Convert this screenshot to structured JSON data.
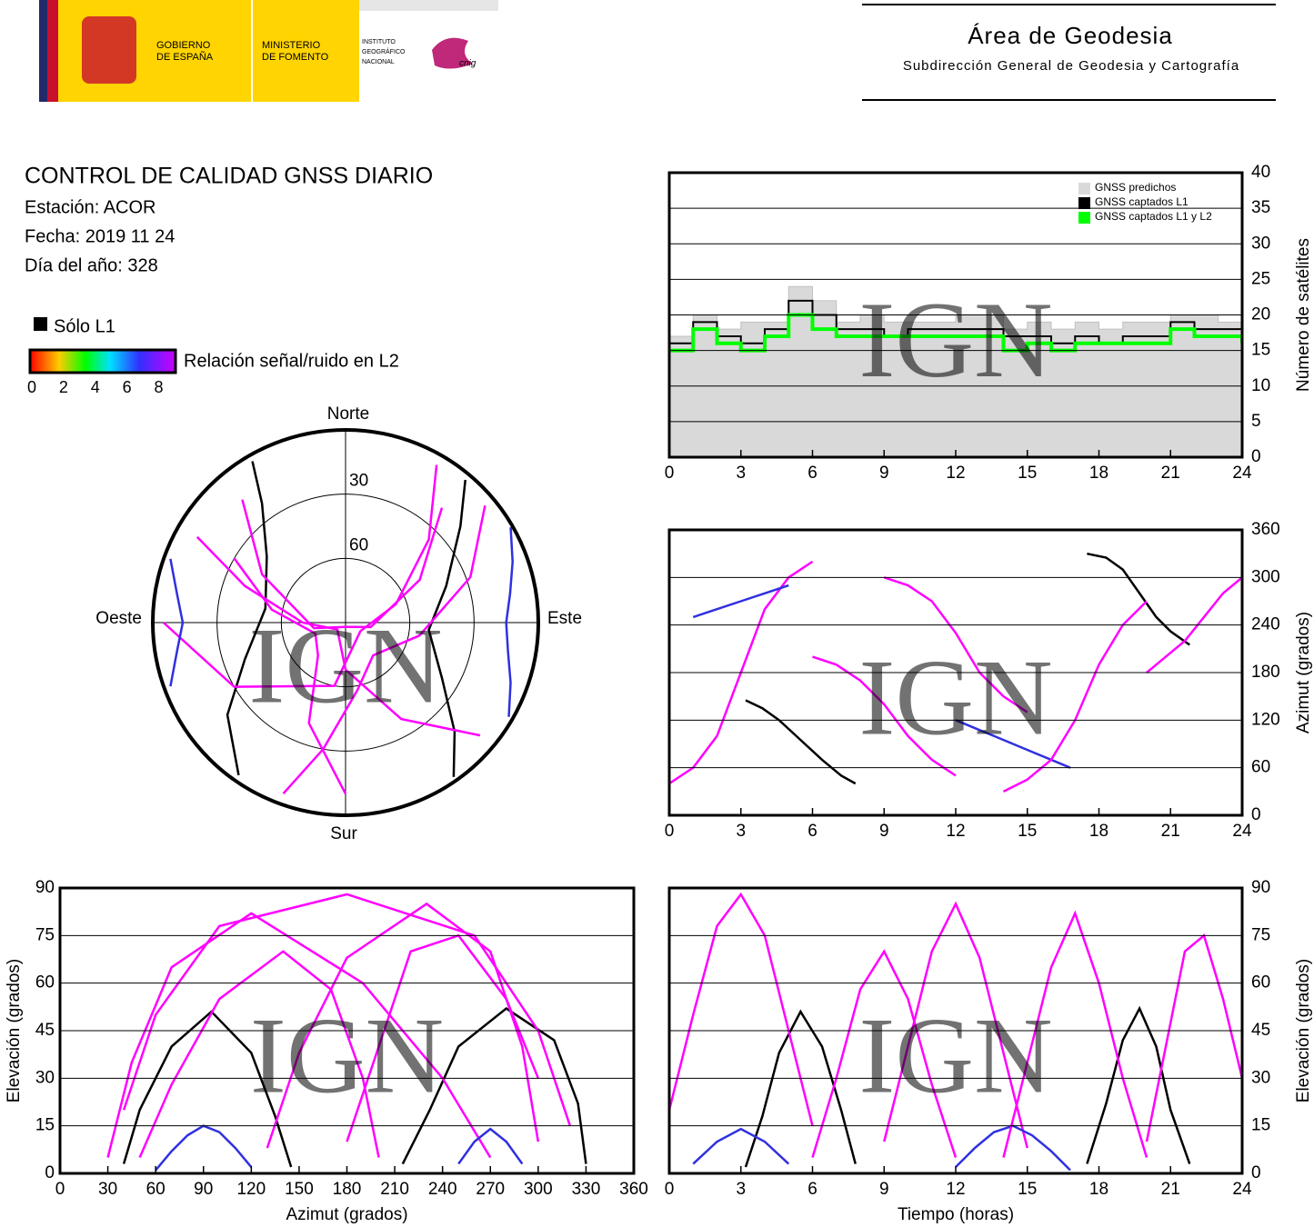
{
  "header": {
    "gobierno": [
      "GOBIERNO",
      "DE ESPAÑA"
    ],
    "ministerio": [
      "MINISTERIO",
      "DE FOMENTO"
    ],
    "instituto": [
      "INSTITUTO",
      "GEOGRÁFICO",
      "NACIONAL"
    ],
    "cnig": "cnig",
    "area": "Área de Geodesia",
    "subdireccion": "Subdirección General de Geodesia y Cartografía"
  },
  "report": {
    "title": "CONTROL DE CALIDAD GNSS DIARIO",
    "station": "Estación: ACOR",
    "date": "Fecha: 2019 11 24",
    "doy": "Día del año: 328",
    "l1_only": "Sólo L1",
    "l1_only_color": "#000000",
    "snr_label": "Relación señal/ruido en L2",
    "snr_lim": [
      0,
      9
    ],
    "snr_ticks": [
      0,
      2,
      4,
      6,
      8
    ],
    "watermark": "IGN"
  },
  "chart_data": [
    {
      "type": "step",
      "ylabel": "Número de satélites",
      "yaxis": "right",
      "xlim": [
        0,
        24
      ],
      "xticks": [
        0,
        3,
        6,
        9,
        12,
        15,
        18,
        21,
        24
      ],
      "ylim": [
        0,
        40
      ],
      "yticks": [
        0,
        5,
        10,
        15,
        20,
        25,
        30,
        35,
        40
      ],
      "grid": true,
      "legend": "top-right",
      "x": [
        0,
        1,
        2,
        3,
        4,
        5,
        6,
        7,
        8,
        9,
        10,
        11,
        12,
        13,
        14,
        15,
        16,
        17,
        18,
        19,
        20,
        21,
        22,
        23,
        24
      ],
      "series": [
        {
          "name": "GNSS predichos",
          "color": "#d9d9d9",
          "fill": true,
          "values": [
            17,
            20,
            18,
            19,
            19,
            24,
            22,
            19,
            20,
            19,
            19,
            19,
            20,
            20,
            18,
            19,
            18,
            19,
            18,
            19,
            19,
            20,
            20,
            19,
            19
          ]
        },
        {
          "name": "GNSS captados L1",
          "color": "#000000",
          "values": [
            16,
            19,
            17,
            16,
            18,
            22,
            20,
            18,
            18,
            17,
            18,
            18,
            18,
            18,
            17,
            17,
            16,
            17,
            16,
            17,
            17,
            19,
            18,
            18,
            17
          ]
        },
        {
          "name": "GNSS captados L1 y L2",
          "color": "#00ff00",
          "values": [
            15,
            18,
            16,
            15,
            17,
            20,
            18,
            17,
            17,
            17,
            17,
            17,
            17,
            17,
            15,
            16,
            15,
            16,
            16,
            16,
            16,
            18,
            17,
            17,
            16
          ]
        }
      ]
    },
    {
      "type": "line",
      "ylabel": "Azimut (grados)",
      "yaxis": "right",
      "xlim": [
        0,
        24
      ],
      "xticks": [
        0,
        3,
        6,
        9,
        12,
        15,
        18,
        21,
        24
      ],
      "ylim": [
        0,
        360
      ],
      "yticks": [
        0,
        60,
        120,
        180,
        240,
        300,
        360
      ],
      "grid": true,
      "series": [
        {
          "color": "#000000",
          "x": [
            3.2,
            3.9,
            4.6,
            5.5,
            6.4,
            7.2,
            7.8
          ],
          "values": [
            145,
            135,
            120,
            95,
            70,
            50,
            40
          ]
        },
        {
          "color": "#000000",
          "x": [
            17.5,
            18.3,
            19.0,
            19.7,
            20.4,
            21.0,
            21.8
          ],
          "values": [
            330,
            325,
            310,
            280,
            250,
            232,
            215
          ]
        },
        {
          "color": "#ff00ff",
          "x": [
            0,
            1,
            2,
            3,
            4,
            5,
            6
          ],
          "values": [
            40,
            60,
            100,
            180,
            260,
            300,
            320
          ]
        },
        {
          "color": "#ff00ff",
          "x": [
            6,
            7,
            8,
            9,
            10,
            11,
            12
          ],
          "values": [
            200,
            190,
            170,
            140,
            100,
            70,
            50
          ]
        },
        {
          "color": "#ff00ff",
          "x": [
            9,
            10,
            11,
            12,
            13,
            14,
            15
          ],
          "values": [
            300,
            290,
            270,
            230,
            180,
            150,
            130
          ]
        },
        {
          "color": "#3030e0",
          "x": [
            12,
            12.8,
            13.6,
            14.4,
            15.2,
            16,
            16.8
          ],
          "values": [
            120,
            110,
            100,
            90,
            80,
            70,
            60
          ]
        },
        {
          "color": "#ff00ff",
          "x": [
            14,
            15,
            16,
            17,
            18,
            19,
            20
          ],
          "values": [
            30,
            45,
            70,
            120,
            190,
            240,
            270
          ]
        },
        {
          "color": "#ff00ff",
          "x": [
            20,
            20.8,
            21.6,
            22.4,
            23.2,
            24
          ],
          "values": [
            180,
            200,
            220,
            250,
            280,
            300
          ]
        },
        {
          "color": "#3030e0",
          "x": [
            1,
            2,
            3,
            4,
            5
          ],
          "values": [
            250,
            260,
            270,
            280,
            290
          ]
        }
      ]
    },
    {
      "type": "polar",
      "directions": {
        "north": "Norte",
        "south": "Sur",
        "east": "Este",
        "west": "Oeste"
      },
      "rlim": [
        90,
        0
      ],
      "rings": [
        30,
        60
      ],
      "series": [
        {
          "color": "#000000",
          "azimuth": [
            145,
            135,
            120,
            95,
            70,
            50,
            40
          ],
          "elevation": [
            2,
            18,
            38,
            51,
            40,
            20,
            3
          ]
        },
        {
          "color": "#000000",
          "azimuth": [
            330,
            325,
            310,
            280,
            250,
            232,
            215
          ],
          "elevation": [
            3,
            22,
            42,
            52,
            40,
            20,
            3
          ]
        },
        {
          "color": "#ff00ff",
          "azimuth": [
            40,
            60,
            100,
            180,
            260,
            300,
            320
          ],
          "elevation": [
            20,
            50,
            78,
            88,
            75,
            45,
            15
          ]
        },
        {
          "color": "#ff00ff",
          "azimuth": [
            200,
            190,
            170,
            140,
            100,
            70,
            50
          ],
          "elevation": [
            5,
            30,
            58,
            70,
            55,
            28,
            5
          ]
        },
        {
          "color": "#ff00ff",
          "azimuth": [
            300,
            290,
            270,
            230,
            180,
            150,
            130
          ],
          "elevation": [
            10,
            40,
            70,
            85,
            68,
            38,
            8
          ]
        },
        {
          "color": "#3030e0",
          "azimuth": [
            120,
            110,
            100,
            90,
            80,
            70,
            60
          ],
          "elevation": [
            2,
            8,
            13,
            15,
            12,
            7,
            1
          ]
        },
        {
          "color": "#ff00ff",
          "azimuth": [
            30,
            45,
            70,
            120,
            190,
            240,
            270
          ],
          "elevation": [
            5,
            35,
            65,
            82,
            60,
            30,
            5
          ]
        },
        {
          "color": "#ff00ff",
          "azimuth": [
            180,
            200,
            220,
            250,
            280,
            300
          ],
          "elevation": [
            10,
            40,
            70,
            75,
            55,
            30
          ]
        },
        {
          "color": "#3030e0",
          "azimuth": [
            250,
            260,
            270,
            280,
            290
          ],
          "elevation": [
            3,
            10,
            14,
            10,
            3
          ]
        }
      ]
    },
    {
      "type": "line",
      "xlabel": "Azimut (grados)",
      "ylabel": "Elevación (grados)",
      "yaxis": "left",
      "xlim": [
        0,
        360
      ],
      "xticks": [
        0,
        30,
        60,
        90,
        120,
        150,
        180,
        210,
        240,
        270,
        300,
        330,
        360
      ],
      "ylim": [
        0,
        90
      ],
      "yticks": [
        0,
        15,
        30,
        45,
        60,
        75,
        90
      ],
      "grid": true,
      "series": [
        {
          "color": "#000000",
          "x": [
            145,
            135,
            120,
            95,
            70,
            50,
            40
          ],
          "values": [
            2,
            18,
            38,
            51,
            40,
            20,
            3
          ]
        },
        {
          "color": "#000000",
          "x": [
            330,
            325,
            310,
            280,
            250,
            232,
            215
          ],
          "values": [
            3,
            22,
            42,
            52,
            40,
            20,
            3
          ]
        },
        {
          "color": "#ff00ff",
          "x": [
            40,
            60,
            100,
            180,
            260,
            300,
            320
          ],
          "values": [
            20,
            50,
            78,
            88,
            75,
            45,
            15
          ]
        },
        {
          "color": "#ff00ff",
          "x": [
            200,
            190,
            170,
            140,
            100,
            70,
            50
          ],
          "values": [
            5,
            30,
            58,
            70,
            55,
            28,
            5
          ]
        },
        {
          "color": "#ff00ff",
          "x": [
            300,
            290,
            270,
            230,
            180,
            150,
            130
          ],
          "values": [
            10,
            40,
            70,
            85,
            68,
            38,
            8
          ]
        },
        {
          "color": "#3030e0",
          "x": [
            120,
            110,
            100,
            90,
            80,
            70,
            60
          ],
          "values": [
            2,
            8,
            13,
            15,
            12,
            7,
            1
          ]
        },
        {
          "color": "#ff00ff",
          "x": [
            30,
            45,
            70,
            120,
            190,
            240,
            270
          ],
          "values": [
            5,
            35,
            65,
            82,
            60,
            30,
            5
          ]
        },
        {
          "color": "#ff00ff",
          "x": [
            180,
            200,
            220,
            250,
            280,
            300
          ],
          "values": [
            10,
            40,
            70,
            75,
            55,
            30
          ]
        },
        {
          "color": "#3030e0",
          "x": [
            250,
            260,
            270,
            280,
            290
          ],
          "values": [
            3,
            10,
            14,
            10,
            3
          ]
        }
      ]
    },
    {
      "type": "line",
      "xlabel": "Tiempo (horas)",
      "ylabel": "Elevación (grados)",
      "yaxis": "right",
      "xlim": [
        0,
        24
      ],
      "xticks": [
        0,
        3,
        6,
        9,
        12,
        15,
        18,
        21,
        24
      ],
      "ylim": [
        0,
        90
      ],
      "yticks": [
        0,
        15,
        30,
        45,
        60,
        75,
        90
      ],
      "grid": true,
      "series": [
        {
          "color": "#000000",
          "x": [
            3.2,
            3.9,
            4.6,
            5.5,
            6.4,
            7.2,
            7.8
          ],
          "values": [
            2,
            18,
            38,
            51,
            40,
            20,
            3
          ]
        },
        {
          "color": "#000000",
          "x": [
            17.5,
            18.3,
            19.0,
            19.7,
            20.4,
            21.0,
            21.8
          ],
          "values": [
            3,
            22,
            42,
            52,
            40,
            20,
            3
          ]
        },
        {
          "color": "#ff00ff",
          "x": [
            0,
            1,
            2,
            3,
            4,
            5,
            6
          ],
          "values": [
            20,
            50,
            78,
            88,
            75,
            45,
            15
          ]
        },
        {
          "color": "#ff00ff",
          "x": [
            6,
            7,
            8,
            9,
            10,
            11,
            12
          ],
          "values": [
            5,
            30,
            58,
            70,
            55,
            28,
            5
          ]
        },
        {
          "color": "#ff00ff",
          "x": [
            9,
            10,
            11,
            12,
            13,
            14,
            15
          ],
          "values": [
            10,
            40,
            70,
            85,
            68,
            38,
            8
          ]
        },
        {
          "color": "#3030e0",
          "x": [
            12,
            12.8,
            13.6,
            14.4,
            15.2,
            16,
            16.8
          ],
          "values": [
            2,
            8,
            13,
            15,
            12,
            7,
            1
          ]
        },
        {
          "color": "#ff00ff",
          "x": [
            14,
            15,
            16,
            17,
            18,
            19,
            20
          ],
          "values": [
            5,
            35,
            65,
            82,
            60,
            30,
            5
          ]
        },
        {
          "color": "#ff00ff",
          "x": [
            20,
            20.8,
            21.6,
            22.4,
            23.2,
            24
          ],
          "values": [
            10,
            40,
            70,
            75,
            55,
            30
          ]
        },
        {
          "color": "#3030e0",
          "x": [
            1,
            2,
            3,
            4,
            5
          ],
          "values": [
            3,
            10,
            14,
            10,
            3
          ]
        }
      ]
    }
  ]
}
